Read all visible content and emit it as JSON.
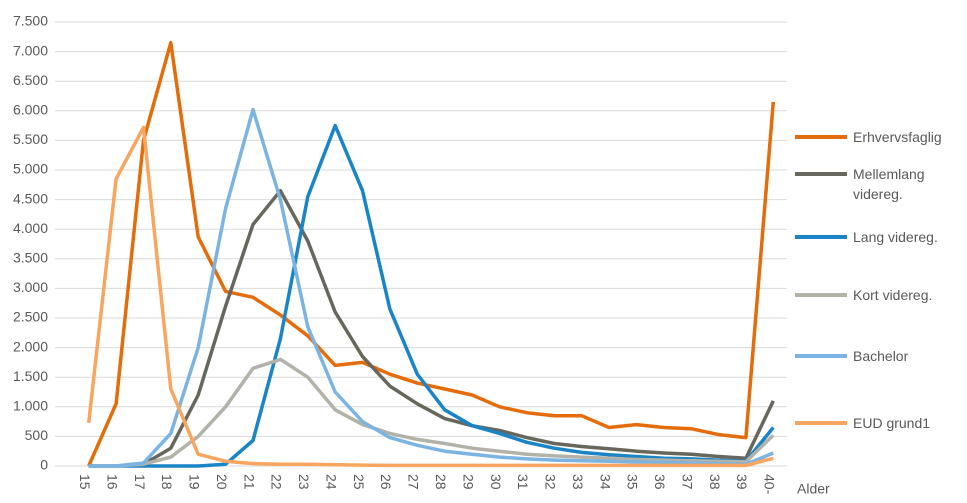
{
  "chart_data": {
    "type": "line",
    "x_label": "Alder",
    "categories": [
      "15",
      "16",
      "17",
      "18",
      "19",
      "20",
      "21",
      "22",
      "23",
      "24",
      "25",
      "26",
      "27",
      "28",
      "29",
      "30",
      "31",
      "32",
      "33",
      "34",
      "35",
      "36",
      "37",
      "38",
      "39",
      "40-"
    ],
    "ylim": [
      0,
      7500
    ],
    "yticks": [
      0,
      500,
      {
        "value": 1000,
        "label": "1.000"
      },
      {
        "value": 1500,
        "label": "1.500"
      },
      {
        "value": 2000,
        "label": "2.000"
      },
      {
        "value": 2500,
        "label": "2.500"
      },
      {
        "value": 3000,
        "label": "3.000"
      },
      {
        "value": 3500,
        "label": "3.500"
      },
      {
        "value": 4000,
        "label": "4.000"
      },
      {
        "value": 4500,
        "label": "4.500"
      },
      {
        "value": 5000,
        "label": "5.000"
      },
      {
        "value": 5500,
        "label": "5.500"
      },
      {
        "value": 6000,
        "label": "6.000"
      },
      {
        "value": 6500,
        "label": "6.500"
      },
      {
        "value": 7000,
        "label": "7.000"
      },
      {
        "value": 7500,
        "label": "7.500"
      }
    ],
    "grid": true,
    "legend": "right",
    "series": [
      {
        "name": "Erhvervsfaglig",
        "color": "#e46c0a",
        "values": [
          0,
          1050,
          5500,
          7150,
          3870,
          2950,
          2850,
          2550,
          2200,
          1700,
          1750,
          1550,
          1400,
          1300,
          1200,
          1000,
          900,
          850,
          850,
          650,
          700,
          650,
          630,
          530,
          480,
          6150
        ]
      },
      {
        "name": "Mellemlang videreg.",
        "color": "#67675c",
        "values": [
          0,
          0,
          30,
          300,
          1200,
          2700,
          4080,
          4650,
          3800,
          2600,
          1850,
          1350,
          1050,
          800,
          680,
          600,
          480,
          380,
          330,
          290,
          250,
          220,
          200,
          160,
          130,
          1100
        ]
      },
      {
        "name": "Lang videreg.",
        "color": "#1a84c7",
        "values": [
          0,
          0,
          0,
          0,
          0,
          30,
          430,
          2150,
          4550,
          5750,
          4650,
          2650,
          1550,
          950,
          680,
          550,
          400,
          300,
          230,
          190,
          160,
          130,
          120,
          100,
          80,
          650
        ]
      },
      {
        "name": "Kort videreg.",
        "color": "#b2b2a9",
        "values": [
          0,
          0,
          30,
          150,
          500,
          1000,
          1650,
          1800,
          1500,
          950,
          700,
          550,
          450,
          380,
          300,
          250,
          200,
          170,
          150,
          130,
          110,
          100,
          90,
          80,
          70,
          520
        ]
      },
      {
        "name": "Bachelor",
        "color": "#7bb4e2",
        "values": [
          0,
          0,
          50,
          550,
          2000,
          4350,
          6020,
          4500,
          2350,
          1250,
          750,
          480,
          350,
          250,
          200,
          150,
          120,
          100,
          90,
          80,
          70,
          60,
          50,
          40,
          30,
          220
        ]
      },
      {
        "name": "EUD grund1",
        "color": "#f8a55f",
        "values": [
          730,
          4850,
          5720,
          1300,
          200,
          80,
          40,
          30,
          30,
          20,
          15,
          10,
          10,
          10,
          10,
          10,
          10,
          10,
          10,
          10,
          10,
          10,
          10,
          10,
          10,
          130
        ]
      }
    ]
  }
}
